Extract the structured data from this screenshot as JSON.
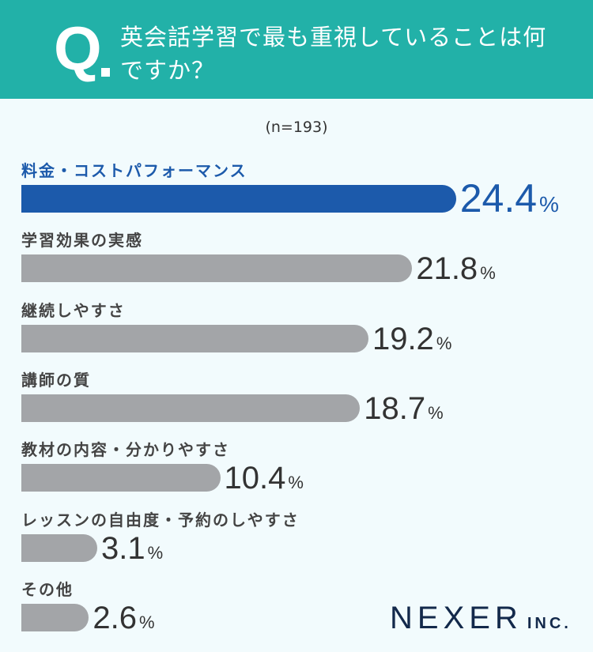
{
  "header": {
    "q_mark": "Q",
    "question": "英会話学習で最も重視していることは何ですか？"
  },
  "chart_data": {
    "type": "bar",
    "orientation": "horizontal",
    "sample_note": "(n=193)",
    "categories": [
      "料金・コストパフォーマンス",
      "学習効果の実感",
      "継続しやすさ",
      "講師の質",
      "教材の内容・分かりやすさ",
      "レッスンの自由度・予約のしやすさ",
      "その他"
    ],
    "values": [
      24.4,
      21.8,
      19.2,
      18.7,
      10.4,
      3.1,
      2.6
    ],
    "unit": "%",
    "highlight_index": 0,
    "colors": {
      "highlight": "#1c5aab",
      "default": "#a3a5a8",
      "header": "#22b1a8"
    }
  },
  "logo": {
    "name": "NEXER",
    "suffix": "INC."
  }
}
